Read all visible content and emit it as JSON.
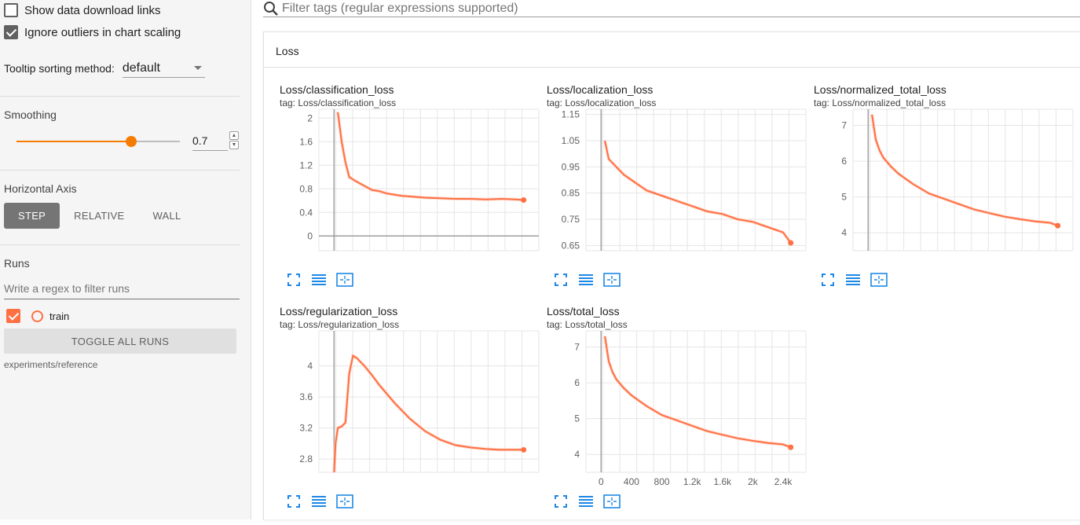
{
  "sidebar": {
    "show_download_links": "Show data download links",
    "ignore_outliers": "Ignore outliers in chart scaling",
    "tooltip_label": "Tooltip sorting method:",
    "tooltip_value": "default",
    "smoothing_title": "Smoothing",
    "smoothing_value": "0.7",
    "smoothing_fraction": 0.7,
    "horizontal_axis_title": "Horizontal Axis",
    "axis_step": "STEP",
    "axis_relative": "RELATIVE",
    "axis_wall": "WALL",
    "runs_title": "Runs",
    "runs_filter_placeholder": "Write a regex to filter runs",
    "run_name": "train",
    "toggle_all": "TOGGLE ALL RUNS",
    "experiment_path": "experiments/reference"
  },
  "main": {
    "filter_placeholder": "Filter tags (regular expressions supported)",
    "group_title": "Loss"
  },
  "colors": {
    "series": "#ff7043",
    "series_faint": "#ffccbc",
    "accent": "#f57c00",
    "icon_blue": "#1e88e5"
  },
  "cards": [
    {
      "title": "Loss/classification_loss",
      "tag": "tag: Loss/classification_loss"
    },
    {
      "title": "Loss/localization_loss",
      "tag": "tag: Loss/localization_loss"
    },
    {
      "title": "Loss/normalized_total_loss",
      "tag": "tag: Loss/normalized_total_loss"
    },
    {
      "title": "Loss/regularization_loss",
      "tag": "tag: Loss/regularization_loss"
    },
    {
      "title": "Loss/total_loss",
      "tag": "tag: Loss/total_loss"
    }
  ],
  "chart_data": [
    {
      "type": "line",
      "title": "Loss/classification_loss",
      "ylim": [
        -0.25,
        2.15
      ],
      "xlim": [
        -200,
        2700
      ],
      "yticks": [
        "0",
        "0.4",
        "0.8",
        "1.2",
        "1.6",
        "2"
      ],
      "ytick_values": [
        0,
        0.4,
        0.8,
        1.2,
        1.6,
        2
      ],
      "xticks": [],
      "series": [
        {
          "name": "train",
          "x": [
            50,
            100,
            150,
            200,
            300,
            400,
            500,
            600,
            700,
            800,
            900,
            1000,
            1200,
            1400,
            1600,
            1800,
            2000,
            2200,
            2400,
            2500
          ],
          "y": [
            2.1,
            1.6,
            1.25,
            1.0,
            0.92,
            0.85,
            0.78,
            0.76,
            0.72,
            0.7,
            0.68,
            0.67,
            0.65,
            0.64,
            0.63,
            0.63,
            0.62,
            0.63,
            0.62,
            0.61
          ]
        }
      ]
    },
    {
      "type": "line",
      "title": "Loss/localization_loss",
      "ylim": [
        0.63,
        1.17
      ],
      "xlim": [
        -200,
        2700
      ],
      "yticks": [
        "0.65",
        "0.75",
        "0.85",
        "0.95",
        "1.05",
        "1.15"
      ],
      "ytick_values": [
        0.65,
        0.75,
        0.85,
        0.95,
        1.05,
        1.15
      ],
      "xticks": [],
      "series": [
        {
          "name": "train",
          "x": [
            50,
            100,
            200,
            300,
            400,
            500,
            600,
            800,
            1000,
            1200,
            1400,
            1600,
            1800,
            2000,
            2200,
            2400,
            2500
          ],
          "y": [
            1.05,
            0.98,
            0.95,
            0.92,
            0.9,
            0.88,
            0.86,
            0.84,
            0.82,
            0.8,
            0.78,
            0.77,
            0.75,
            0.74,
            0.72,
            0.7,
            0.66
          ]
        }
      ]
    },
    {
      "type": "line",
      "title": "Loss/normalized_total_loss",
      "ylim": [
        3.5,
        7.45
      ],
      "xlim": [
        -200,
        2700
      ],
      "yticks": [
        "4",
        "5",
        "6",
        "7"
      ],
      "ytick_values": [
        4,
        5,
        6,
        7
      ],
      "xticks": [],
      "series": [
        {
          "name": "train",
          "x": [
            50,
            100,
            150,
            200,
            300,
            400,
            500,
            600,
            800,
            1000,
            1200,
            1400,
            1600,
            1800,
            2000,
            2200,
            2400,
            2500
          ],
          "y": [
            7.3,
            6.6,
            6.3,
            6.1,
            5.85,
            5.65,
            5.5,
            5.35,
            5.1,
            4.95,
            4.8,
            4.65,
            4.55,
            4.45,
            4.38,
            4.32,
            4.28,
            4.2
          ]
        }
      ]
    },
    {
      "type": "line",
      "title": "Loss/regularization_loss",
      "ylim": [
        2.63,
        4.45
      ],
      "xlim": [
        -200,
        2700
      ],
      "yticks": [
        "2.8",
        "3.2",
        "3.6",
        "4"
      ],
      "ytick_values": [
        2.8,
        3.2,
        3.6,
        4.0
      ],
      "xticks": [],
      "series": [
        {
          "name": "train",
          "x": [
            0,
            20,
            50,
            100,
            150,
            200,
            250,
            300,
            350,
            400,
            500,
            600,
            800,
            1000,
            1200,
            1400,
            1600,
            1800,
            2000,
            2200,
            2400,
            2500
          ],
          "y": [
            2.63,
            3.0,
            3.2,
            3.22,
            3.27,
            3.9,
            4.13,
            4.1,
            4.05,
            4.0,
            3.88,
            3.75,
            3.52,
            3.32,
            3.16,
            3.05,
            2.98,
            2.95,
            2.93,
            2.92,
            2.92,
            2.92
          ]
        }
      ]
    },
    {
      "type": "line",
      "title": "Loss/total_loss",
      "ylim": [
        3.5,
        7.45
      ],
      "xlim": [
        -200,
        2700
      ],
      "yticks": [
        "4",
        "5",
        "6",
        "7"
      ],
      "ytick_values": [
        4,
        5,
        6,
        7
      ],
      "xticks": [
        "0",
        "400",
        "800",
        "1.2k",
        "1.6k",
        "2k",
        "2.4k"
      ],
      "xtick_values": [
        0,
        400,
        800,
        1200,
        1600,
        2000,
        2400
      ],
      "series": [
        {
          "name": "train",
          "x": [
            50,
            100,
            150,
            200,
            300,
            400,
            500,
            600,
            800,
            1000,
            1200,
            1400,
            1600,
            1800,
            2000,
            2200,
            2400,
            2500
          ],
          "y": [
            7.3,
            6.6,
            6.3,
            6.1,
            5.85,
            5.65,
            5.5,
            5.35,
            5.1,
            4.95,
            4.8,
            4.65,
            4.55,
            4.45,
            4.38,
            4.32,
            4.28,
            4.2
          ]
        }
      ]
    }
  ]
}
